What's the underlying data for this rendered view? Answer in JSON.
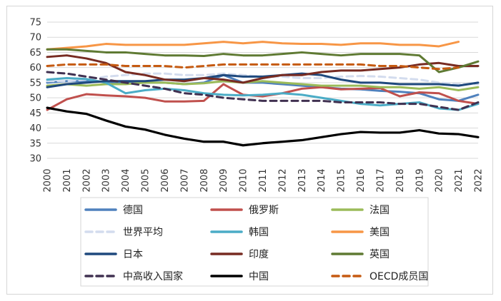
{
  "chart_data": {
    "type": "line",
    "title": "",
    "xlabel": "",
    "ylabel": "",
    "ylim": [
      30,
      75
    ],
    "yticks": [
      30,
      35,
      40,
      45,
      50,
      55,
      60,
      65,
      70,
      75
    ],
    "grid": "horizontal",
    "legend_position": "bottom",
    "x": [
      "2000",
      "2001",
      "2002",
      "2003",
      "2004",
      "2005",
      "2006",
      "2007",
      "2008",
      "2009",
      "2010",
      "2011",
      "2012",
      "2013",
      "2014",
      "2015",
      "2016",
      "2017",
      "2018",
      "2019",
      "2020",
      "2021",
      "2022"
    ],
    "series": [
      {
        "name": "德国",
        "color": "#4f81bd",
        "dash": "solid",
        "values": [
          55.0,
          55.5,
          55.5,
          55.3,
          55.0,
          55.0,
          55.0,
          54.5,
          55.0,
          57.5,
          55.0,
          55.0,
          54.5,
          54.0,
          53.5,
          53.0,
          52.8,
          52.3,
          52.0,
          51.5,
          49.5,
          49.0,
          51.0
        ]
      },
      {
        "name": "俄罗斯",
        "color": "#c0504d",
        "dash": "solid",
        "values": [
          46.0,
          49.5,
          51.2,
          50.8,
          50.5,
          50.0,
          48.8,
          48.8,
          49.0,
          54.5,
          51.0,
          50.5,
          51.5,
          53.0,
          53.5,
          52.8,
          53.0,
          53.2,
          50.5,
          51.8,
          51.5,
          49.0,
          48.0
        ]
      },
      {
        "name": "法国",
        "color": "#9bbb59",
        "dash": "solid",
        "values": [
          54.0,
          54.5,
          54.0,
          54.5,
          54.5,
          55.0,
          55.0,
          54.5,
          54.8,
          55.5,
          55.0,
          55.5,
          55.0,
          54.5,
          54.0,
          54.0,
          54.0,
          53.5,
          53.5,
          53.0,
          53.5,
          52.5,
          53.5
        ]
      },
      {
        "name": "世界平均",
        "color": "#d3dcee",
        "dash": "dashed",
        "values": [
          55.5,
          55.5,
          56.0,
          57.0,
          57.5,
          58.0,
          58.0,
          57.5,
          57.5,
          58.0,
          57.5,
          57.0,
          57.0,
          56.5,
          56.5,
          57.0,
          57.2,
          57.0,
          56.5,
          56.0,
          55.0,
          54.5,
          54.5
        ]
      },
      {
        "name": "韩国",
        "color": "#4bacc6",
        "dash": "solid",
        "values": [
          56.0,
          56.5,
          56.2,
          55.0,
          51.5,
          52.5,
          53.0,
          52.5,
          51.5,
          51.0,
          50.8,
          51.0,
          51.5,
          51.0,
          50.0,
          49.0,
          48.0,
          47.5,
          48.0,
          48.5,
          46.5,
          46.0,
          48.0
        ]
      },
      {
        "name": "美国",
        "color": "#f79646",
        "dash": "solid",
        "values": [
          66.0,
          66.5,
          67.0,
          67.8,
          67.5,
          67.5,
          67.5,
          67.5,
          68.0,
          68.5,
          68.0,
          68.5,
          68.0,
          67.8,
          67.8,
          67.5,
          68.0,
          68.0,
          67.5,
          67.5,
          67.0,
          68.5,
          null
        ]
      },
      {
        "name": "日本",
        "color": "#1f497d",
        "dash": "solid",
        "values": [
          53.5,
          54.5,
          55.0,
          55.5,
          55.5,
          55.5,
          56.0,
          56.0,
          56.5,
          57.5,
          57.0,
          57.0,
          57.5,
          58.0,
          57.5,
          56.0,
          55.0,
          55.0,
          54.5,
          54.5,
          54.5,
          54.0,
          55.0
        ]
      },
      {
        "name": "印度",
        "color": "#772b22",
        "dash": "solid",
        "values": [
          63.5,
          64.0,
          63.0,
          61.5,
          58.5,
          57.5,
          56.0,
          55.5,
          56.5,
          56.0,
          55.0,
          56.5,
          57.5,
          57.5,
          58.5,
          59.0,
          59.0,
          59.5,
          60.0,
          61.0,
          61.5,
          60.5,
          60.5
        ]
      },
      {
        "name": "英国",
        "color": "#5f7a33",
        "dash": "solid",
        "values": [
          66.0,
          66.0,
          65.5,
          65.0,
          65.0,
          64.5,
          64.0,
          64.0,
          63.8,
          64.5,
          64.0,
          64.0,
          64.5,
          65.0,
          64.5,
          64.0,
          64.5,
          64.5,
          64.5,
          64.0,
          58.5,
          60.0,
          62.0
        ]
      },
      {
        "name": "中高收入国家",
        "color": "#403151",
        "dash": "dashed",
        "values": [
          58.5,
          58.0,
          57.0,
          56.0,
          55.0,
          54.0,
          53.0,
          51.5,
          51.0,
          50.0,
          49.5,
          49.0,
          49.0,
          49.0,
          49.0,
          48.5,
          48.5,
          48.5,
          48.0,
          48.0,
          47.0,
          46.0,
          48.5
        ]
      },
      {
        "name": "中国",
        "color": "#000000",
        "dash": "solid",
        "values": [
          46.7,
          45.5,
          44.7,
          42.5,
          40.5,
          39.5,
          37.8,
          36.5,
          35.5,
          35.5,
          34.3,
          35.0,
          35.5,
          36.0,
          37.0,
          38.0,
          38.7,
          38.5,
          38.5,
          39.3,
          38.2,
          38.0,
          37.0
        ]
      },
      {
        "name": "OECD成员国",
        "color": "#c55a11",
        "dash": "dashed",
        "values": [
          60.5,
          61.0,
          61.0,
          61.0,
          60.5,
          60.5,
          60.5,
          60.0,
          60.5,
          61.0,
          61.0,
          61.0,
          61.0,
          61.0,
          61.0,
          61.0,
          61.0,
          60.5,
          60.5,
          60.0,
          59.5,
          60.0,
          null
        ]
      }
    ]
  }
}
